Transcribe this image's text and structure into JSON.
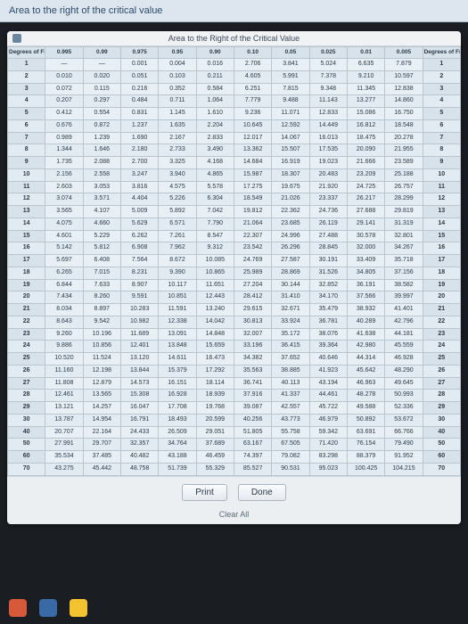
{
  "topbar": {
    "label": "Area to the right of the critical value"
  },
  "windowTitle": "Area to the Right of the Critical Value",
  "buttons": {
    "print": "Print",
    "done": "Done",
    "clear": "Clear All"
  },
  "columns": [
    "Degrees of Freedom",
    "0.995",
    "0.99",
    "0.975",
    "0.95",
    "0.90",
    "0.10",
    "0.05",
    "0.025",
    "0.01",
    "0.005",
    "Degrees of Freedom"
  ],
  "rows": [
    [
      1,
      "—",
      "—",
      "0.001",
      "0.004",
      "0.016",
      "2.706",
      "3.841",
      "5.024",
      "6.635",
      "7.879",
      1
    ],
    [
      2,
      "0.010",
      "0.020",
      "0.051",
      "0.103",
      "0.211",
      "4.605",
      "5.991",
      "7.378",
      "9.210",
      "10.597",
      2
    ],
    [
      3,
      "0.072",
      "0.115",
      "0.216",
      "0.352",
      "0.584",
      "6.251",
      "7.815",
      "9.348",
      "11.345",
      "12.838",
      3
    ],
    [
      4,
      "0.207",
      "0.297",
      "0.484",
      "0.711",
      "1.064",
      "7.779",
      "9.488",
      "11.143",
      "13.277",
      "14.860",
      4
    ],
    [
      5,
      "0.412",
      "0.554",
      "0.831",
      "1.145",
      "1.610",
      "9.236",
      "11.071",
      "12.833",
      "15.086",
      "16.750",
      5
    ],
    [
      6,
      "0.676",
      "0.872",
      "1.237",
      "1.635",
      "2.204",
      "10.645",
      "12.592",
      "14.449",
      "16.812",
      "18.548",
      6
    ],
    [
      7,
      "0.989",
      "1.239",
      "1.690",
      "2.167",
      "2.833",
      "12.017",
      "14.067",
      "16.013",
      "18.475",
      "20.278",
      7
    ],
    [
      8,
      "1.344",
      "1.646",
      "2.180",
      "2.733",
      "3.490",
      "13.362",
      "15.507",
      "17.535",
      "20.090",
      "21.955",
      8
    ],
    [
      9,
      "1.735",
      "2.088",
      "2.700",
      "3.325",
      "4.168",
      "14.684",
      "16.919",
      "19.023",
      "21.666",
      "23.589",
      9
    ],
    [
      10,
      "2.156",
      "2.558",
      "3.247",
      "3.940",
      "4.865",
      "15.987",
      "18.307",
      "20.483",
      "23.209",
      "25.188",
      10
    ],
    [
      11,
      "2.603",
      "3.053",
      "3.816",
      "4.575",
      "5.578",
      "17.275",
      "19.675",
      "21.920",
      "24.725",
      "26.757",
      11
    ],
    [
      12,
      "3.074",
      "3.571",
      "4.404",
      "5.226",
      "6.304",
      "18.549",
      "21.026",
      "23.337",
      "26.217",
      "28.299",
      12
    ],
    [
      13,
      "3.565",
      "4.107",
      "5.009",
      "5.892",
      "7.042",
      "19.812",
      "22.362",
      "24.736",
      "27.688",
      "29.819",
      13
    ],
    [
      14,
      "4.075",
      "4.660",
      "5.629",
      "6.571",
      "7.790",
      "21.064",
      "23.685",
      "26.119",
      "29.141",
      "31.319",
      14
    ],
    [
      15,
      "4.601",
      "5.229",
      "6.262",
      "7.261",
      "8.547",
      "22.307",
      "24.996",
      "27.488",
      "30.578",
      "32.801",
      15
    ],
    [
      16,
      "5.142",
      "5.812",
      "6.908",
      "7.962",
      "9.312",
      "23.542",
      "26.296",
      "28.845",
      "32.000",
      "34.267",
      16
    ],
    [
      17,
      "5.697",
      "6.408",
      "7.564",
      "8.672",
      "10.085",
      "24.769",
      "27.587",
      "30.191",
      "33.409",
      "35.718",
      17
    ],
    [
      18,
      "6.265",
      "7.015",
      "8.231",
      "9.390",
      "10.865",
      "25.989",
      "28.869",
      "31.526",
      "34.805",
      "37.156",
      18
    ],
    [
      19,
      "6.844",
      "7.633",
      "8.907",
      "10.117",
      "11.651",
      "27.204",
      "30.144",
      "32.852",
      "36.191",
      "38.582",
      19
    ],
    [
      20,
      "7.434",
      "8.260",
      "9.591",
      "10.851",
      "12.443",
      "28.412",
      "31.410",
      "34.170",
      "37.566",
      "39.997",
      20
    ],
    [
      21,
      "8.034",
      "8.897",
      "10.283",
      "11.591",
      "13.240",
      "29.615",
      "32.671",
      "35.479",
      "38.932",
      "41.401",
      21
    ],
    [
      22,
      "8.643",
      "9.542",
      "10.982",
      "12.338",
      "14.042",
      "30.813",
      "33.924",
      "36.781",
      "40.289",
      "42.796",
      22
    ],
    [
      23,
      "9.260",
      "10.196",
      "11.689",
      "13.091",
      "14.848",
      "32.007",
      "35.172",
      "38.076",
      "41.638",
      "44.181",
      23
    ],
    [
      24,
      "9.886",
      "10.856",
      "12.401",
      "13.848",
      "15.659",
      "33.196",
      "36.415",
      "39.364",
      "42.980",
      "45.559",
      24
    ],
    [
      25,
      "10.520",
      "11.524",
      "13.120",
      "14.611",
      "16.473",
      "34.382",
      "37.652",
      "40.646",
      "44.314",
      "46.928",
      25
    ],
    [
      26,
      "11.160",
      "12.198",
      "13.844",
      "15.379",
      "17.292",
      "35.563",
      "38.885",
      "41.923",
      "45.642",
      "48.290",
      26
    ],
    [
      27,
      "11.808",
      "12.879",
      "14.573",
      "16.151",
      "18.114",
      "36.741",
      "40.113",
      "43.194",
      "46.963",
      "49.645",
      27
    ],
    [
      28,
      "12.461",
      "13.565",
      "15.308",
      "16.928",
      "18.939",
      "37.916",
      "41.337",
      "44.461",
      "48.278",
      "50.993",
      28
    ],
    [
      29,
      "13.121",
      "14.257",
      "16.047",
      "17.708",
      "19.768",
      "39.087",
      "42.557",
      "45.722",
      "49.588",
      "52.336",
      29
    ],
    [
      30,
      "13.787",
      "14.954",
      "16.791",
      "18.493",
      "20.599",
      "40.256",
      "43.773",
      "46.979",
      "50.892",
      "53.672",
      30
    ],
    [
      40,
      "20.707",
      "22.164",
      "24.433",
      "26.509",
      "29.051",
      "51.805",
      "55.758",
      "59.342",
      "63.691",
      "66.766",
      40
    ],
    [
      50,
      "27.991",
      "29.707",
      "32.357",
      "34.764",
      "37.689",
      "63.167",
      "67.505",
      "71.420",
      "76.154",
      "79.490",
      50
    ],
    [
      60,
      "35.534",
      "37.485",
      "40.482",
      "43.188",
      "46.459",
      "74.397",
      "79.082",
      "83.298",
      "88.379",
      "91.952",
      60
    ],
    [
      70,
      "43.275",
      "45.442",
      "48.758",
      "51.739",
      "55.329",
      "85.527",
      "90.531",
      "95.023",
      "100.425",
      "104.215",
      70
    ]
  ]
}
